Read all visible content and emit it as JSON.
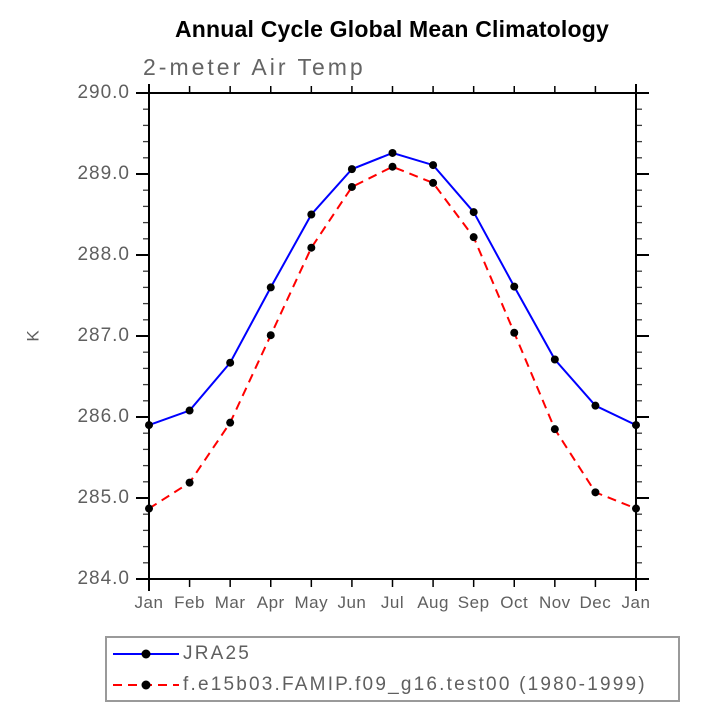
{
  "title": "Annual Cycle Global Mean Climatology",
  "subtitle": "2-meter Air Temp",
  "y_axis": {
    "label": "K",
    "tick_labels": [
      "290.0",
      "289.0",
      "288.0",
      "287.0",
      "286.0",
      "285.0",
      "284.0"
    ],
    "minor_step": 0.2
  },
  "x_axis": {
    "tick_labels": [
      "Jan",
      "Feb",
      "Mar",
      "Apr",
      "May",
      "Jun",
      "Jul",
      "Aug",
      "Sep",
      "Oct",
      "Nov",
      "Dec",
      "Jan"
    ]
  },
  "legend": {
    "items": [
      {
        "label": "JRA25",
        "color": "#0000ff",
        "line_style": "solid",
        "marker": "black-circle"
      },
      {
        "label": "f.e15b03.FAMIP.f09_g16.test00 (1980-1999)",
        "color": "#ff0000",
        "line_style": "dashed",
        "marker": "black-circle"
      }
    ]
  },
  "colors": {
    "background": "#ffffff",
    "axis": "#000000",
    "text_gray": "#5f5f5f",
    "series_blue": "#0000ff",
    "series_red": "#ff0000",
    "marker": "#000000",
    "legend_border": "#9a9a9a"
  },
  "chart_data": {
    "type": "line",
    "title": "Annual Cycle Global Mean Climatology",
    "subtitle": "2-meter Air Temp",
    "ylabel": "K",
    "ylim": [
      284.0,
      290.0
    ],
    "yticks": [
      290.0,
      289.0,
      288.0,
      287.0,
      286.0,
      285.0,
      284.0
    ],
    "y_minor_step": 0.2,
    "x": [
      "Jan",
      "Feb",
      "Mar",
      "Apr",
      "May",
      "Jun",
      "Jul",
      "Aug",
      "Sep",
      "Oct",
      "Nov",
      "Dec",
      "Jan"
    ],
    "grid": false,
    "legend_position": "below",
    "series": [
      {
        "name": "JRA25",
        "color": "#0000ff",
        "line_style": "solid",
        "marker": "black-circle",
        "values": [
          285.9,
          286.08,
          286.67,
          287.6,
          288.5,
          289.06,
          289.26,
          289.11,
          288.53,
          287.61,
          286.71,
          286.14,
          285.9
        ]
      },
      {
        "name": "f.e15b03.FAMIP.f09_g16.test00 (1980-1999)",
        "color": "#ff0000",
        "line_style": "dashed",
        "marker": "black-circle",
        "values": [
          284.87,
          285.19,
          285.93,
          287.01,
          288.09,
          288.84,
          289.09,
          288.89,
          288.22,
          287.04,
          285.85,
          285.07,
          284.87
        ]
      }
    ]
  }
}
